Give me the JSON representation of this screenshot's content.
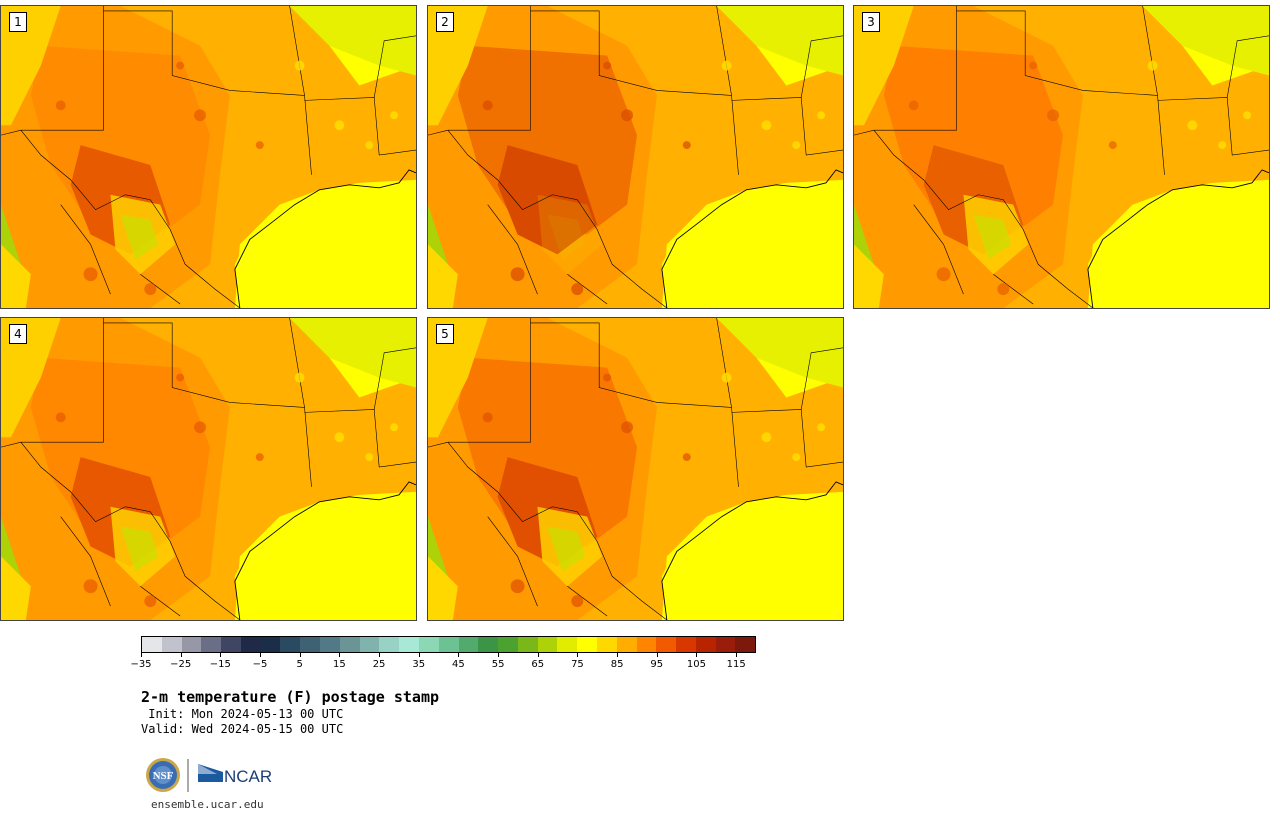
{
  "panels": [
    {
      "label": "1"
    },
    {
      "label": "2"
    },
    {
      "label": "3"
    },
    {
      "label": "4"
    },
    {
      "label": "5"
    }
  ],
  "colorbar": {
    "colors": [
      "#e4e6ea",
      "#c0c2cc",
      "#9698a8",
      "#6a6e86",
      "#3e4664",
      "#1e2a48",
      "#1a2e4a",
      "#2a4a62",
      "#3e6274",
      "#527a86",
      "#6a9496",
      "#80b2ae",
      "#98d2c4",
      "#a8e8d6",
      "#8cd8b4",
      "#6cc292",
      "#52aa6c",
      "#3c9446",
      "#4ca22e",
      "#7ab81a",
      "#aed208",
      "#e2ec00",
      "#ffff00",
      "#ffd800",
      "#ffae00",
      "#ff8400",
      "#f25a00",
      "#d83800",
      "#b82400",
      "#9a1c0a",
      "#7c180c"
    ],
    "tick_labels": [
      "−35",
      "−25",
      "−15",
      "−5",
      "5",
      "15",
      "25",
      "35",
      "45",
      "55",
      "65",
      "75",
      "85",
      "95",
      "105",
      "115"
    ]
  },
  "title": "2-m temperature (F) postage stamp",
  "init_text": " Init: Mon 2024-05-13 00 UTC",
  "valid_text": "Valid: Wed 2024-05-15 00 UTC",
  "logos": {
    "left": "NSF",
    "right": "NCAR"
  },
  "footer": "ensemble.ucar.edu"
}
